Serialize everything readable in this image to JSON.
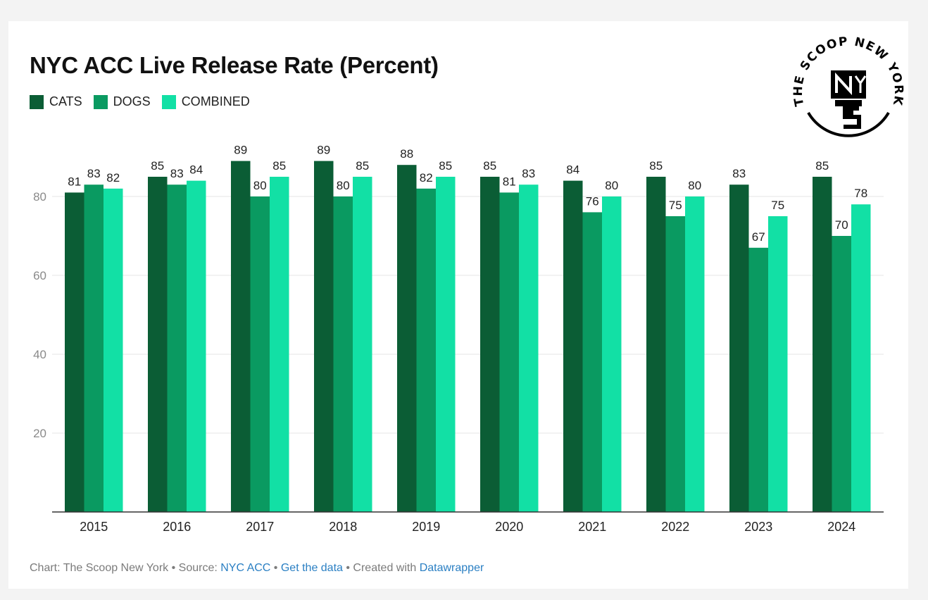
{
  "title": "NYC ACC Live Release Rate (Percent)",
  "logo": {
    "text_top": "THE SCOOP NEW YORK",
    "text_monogram": "NY TS"
  },
  "colors": {
    "cats": "#0b5d35",
    "dogs": "#0a9a61",
    "combined": "#12e0a5"
  },
  "chart_data": {
    "type": "bar",
    "title": "NYC ACC Live Release Rate (Percent)",
    "xlabel": "",
    "ylabel": "",
    "ylim": [
      0,
      100
    ],
    "yticks": [
      20,
      40,
      60,
      80
    ],
    "grid": true,
    "legend_position": "top-left",
    "categories": [
      "2015",
      "2016",
      "2017",
      "2018",
      "2019",
      "2020",
      "2021",
      "2022",
      "2023",
      "2024"
    ],
    "series": [
      {
        "name": "CATS",
        "values": [
          81,
          85,
          89,
          89,
          88,
          85,
          84,
          85,
          83,
          85
        ]
      },
      {
        "name": "DOGS",
        "values": [
          83,
          83,
          80,
          80,
          82,
          81,
          76,
          75,
          67,
          70
        ]
      },
      {
        "name": "COMBINED",
        "values": [
          82,
          84,
          85,
          85,
          85,
          83,
          80,
          80,
          75,
          78
        ]
      }
    ]
  },
  "footer": {
    "prefix": "Chart: The Scoop New York • Source: ",
    "source_link": "NYC ACC",
    "separator1": " • ",
    "data_link": "Get the data",
    "separator2": " • Created with ",
    "tool_link": "Datawrapper"
  }
}
